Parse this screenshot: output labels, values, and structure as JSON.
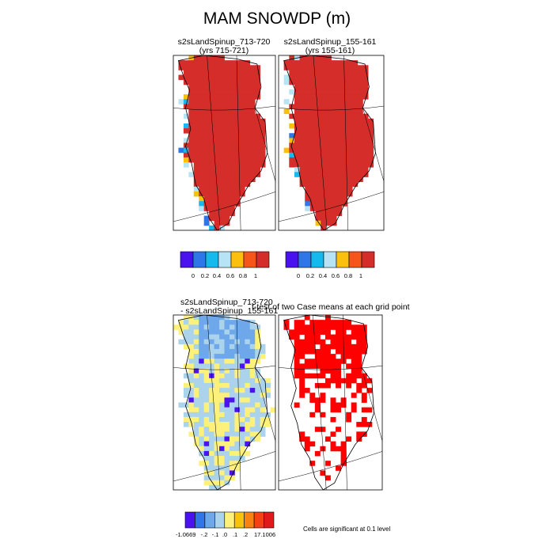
{
  "title": "MAM SNOWDP (m)",
  "colors": {
    "snow_scale": [
      "#4b12f0",
      "#2f76e8",
      "#16b9ee",
      "#b6e4f5",
      "#fbbf10",
      "#f7561a",
      "#d42d2a",
      "#d02a2a"
    ],
    "diff_scale": [
      "#4b12f0",
      "#2f76e8",
      "#6ea8ea",
      "#abd4ec",
      "#fdf17c",
      "#f9c20e",
      "#f88212",
      "#f24216",
      "#e01a1a"
    ],
    "land_red": "#d42d2a",
    "significant": "#ff0000"
  },
  "chart_data": [
    {
      "type": "heatmap",
      "panel": "top-left",
      "title_line1": "s2sLandSpinup_713-720",
      "title_line2": "(yrs 715-721)",
      "colorbar_ticks": [
        "0",
        "0.2",
        "0.4",
        "0.6",
        "0.8",
        "1"
      ]
    },
    {
      "type": "heatmap",
      "panel": "top-right",
      "title_line1": "s2sLandSpinup_155-161",
      "title_line2": "(yrs 155-161)",
      "colorbar_ticks": [
        "0",
        "0.2",
        "0.4",
        "0.6",
        "0.8",
        "1"
      ]
    },
    {
      "type": "heatmap",
      "panel": "bottom-left",
      "title_line1": "s2sLandSpinup_713-720",
      "title_line2": "- s2sLandSpinup_155-161",
      "colorbar_ticks": [
        "-1.0669",
        "-.2",
        "-.1",
        ".0",
        ".1",
        ".2",
        "17.1006"
      ]
    },
    {
      "type": "heatmap",
      "panel": "bottom-right",
      "title_line1": "t-test of two Case means at each grid point",
      "note": "Cells are significant at 0.1 level"
    }
  ]
}
